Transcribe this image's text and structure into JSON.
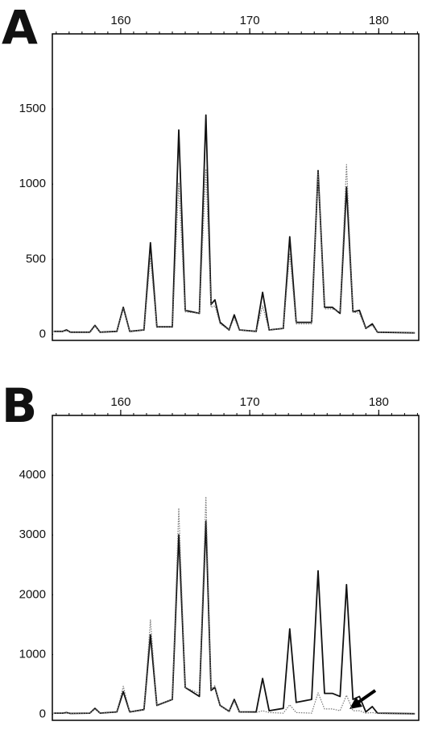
{
  "chart_data": [
    {
      "type": "line",
      "title": "A",
      "x": [
        154.8,
        155.5,
        155.8,
        156.1,
        157.6,
        158,
        158.4,
        159.7,
        160.2,
        160.7,
        161.8,
        162.3,
        162.8,
        164.0,
        164.5,
        165.0,
        166.1,
        166.6,
        167.0,
        167.3,
        167.7,
        168.4,
        168.8,
        169.2,
        170.5,
        171,
        171.5,
        172.6,
        173.1,
        173.6,
        174.8,
        175.3,
        175.8,
        176.4,
        177.0,
        177.5,
        178.0,
        178.5,
        179.0,
        179.5,
        179.9,
        182.8
      ],
      "series": [
        {
          "color": "#111111",
          "style": "solid",
          "values": [
            20,
            20,
            30,
            15,
            15,
            60,
            15,
            20,
            180,
            20,
            30,
            610,
            50,
            50,
            1360,
            160,
            140,
            1460,
            200,
            230,
            80,
            30,
            130,
            30,
            20,
            280,
            30,
            40,
            650,
            80,
            80,
            1090,
            180,
            180,
            140,
            980,
            150,
            160,
            40,
            70,
            15,
            10
          ]
        },
        {
          "color": "#777777",
          "style": "dotted",
          "values": [
            20,
            20,
            25,
            15,
            15,
            55,
            15,
            20,
            170,
            20,
            30,
            510,
            50,
            50,
            1010,
            150,
            140,
            1100,
            180,
            190,
            70,
            30,
            110,
            30,
            20,
            190,
            30,
            40,
            540,
            70,
            70,
            1080,
            170,
            170,
            150,
            1130,
            150,
            140,
            40,
            60,
            15,
            10
          ]
        }
      ],
      "xlim": [
        154.7,
        183.1
      ],
      "xticks": [
        160,
        170,
        180
      ],
      "ylim": [
        -40,
        2000
      ],
      "yticks": [
        0,
        500,
        1000,
        1500
      ]
    },
    {
      "type": "line",
      "title": "B",
      "x": [
        154.8,
        155.5,
        155.8,
        156.1,
        157.6,
        158,
        158.4,
        159.7,
        160.2,
        160.7,
        161.8,
        162.3,
        162.8,
        164.0,
        164.5,
        165.0,
        166.1,
        166.6,
        167.0,
        167.3,
        167.7,
        168.4,
        168.8,
        169.2,
        170.5,
        171,
        171.5,
        172.6,
        173.1,
        173.6,
        174.8,
        175.3,
        175.8,
        176.4,
        177.0,
        177.5,
        178.0,
        178.5,
        179.0,
        179.5,
        179.9,
        182.8
      ],
      "series": [
        {
          "color": "#111111",
          "style": "solid",
          "values": [
            20,
            20,
            30,
            15,
            20,
            100,
            20,
            40,
            380,
            40,
            80,
            1330,
            150,
            250,
            3000,
            450,
            300,
            3230,
            400,
            450,
            150,
            50,
            250,
            40,
            40,
            600,
            60,
            100,
            1430,
            200,
            250,
            2400,
            350,
            350,
            300,
            2170,
            250,
            300,
            40,
            130,
            20,
            10
          ]
        },
        {
          "color": "#777777",
          "style": "dotted",
          "values": [
            20,
            20,
            25,
            15,
            20,
            90,
            20,
            40,
            470,
            40,
            80,
            1580,
            150,
            250,
            3450,
            450,
            350,
            3640,
            420,
            480,
            150,
            50,
            220,
            40,
            30,
            60,
            30,
            20,
            160,
            30,
            20,
            360,
            90,
            90,
            60,
            320,
            60,
            60,
            20,
            30,
            15,
            10
          ]
        }
      ],
      "xlim": [
        154.7,
        183.1
      ],
      "xticks": [
        160,
        170,
        180
      ],
      "ylim": [
        -100,
        5000
      ],
      "yticks": [
        0,
        1000,
        2000,
        3000,
        4000
      ]
    }
  ]
}
